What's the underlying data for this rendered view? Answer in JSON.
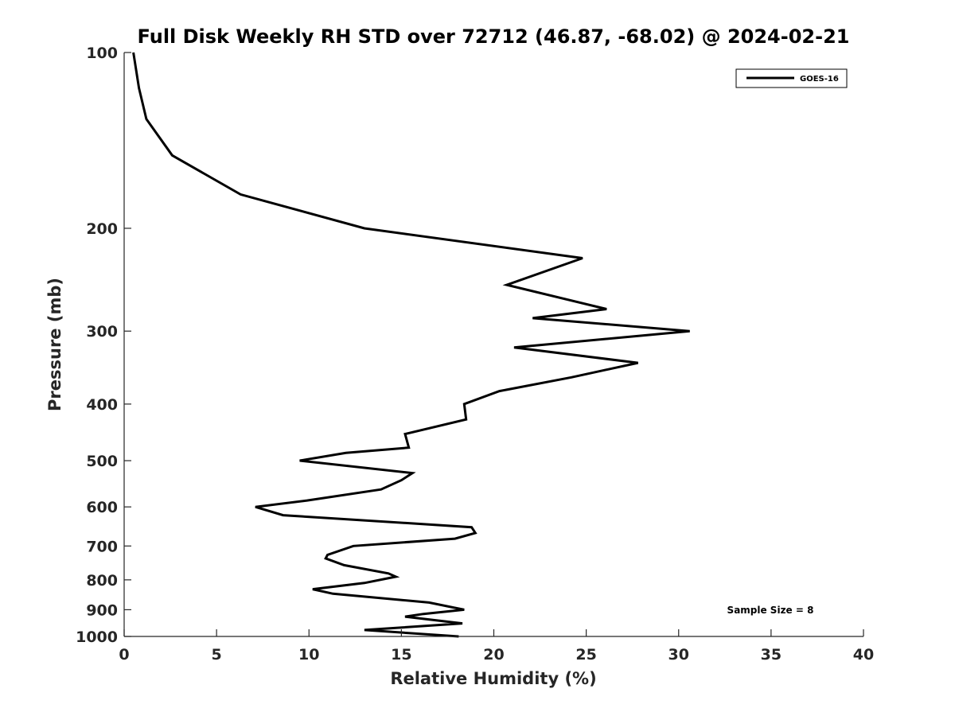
{
  "chart_data": {
    "type": "line",
    "title": "Full Disk Weekly RH STD over 72712 (46.87, -68.02) @ 2024-02-21",
    "xlabel": "Relative Humidity (%)",
    "ylabel": "Pressure (mb)",
    "xlim": [
      0,
      40
    ],
    "ylim": [
      100,
      1000
    ],
    "y_scale": "log",
    "y_reversed": true,
    "xticks": [
      "0",
      "5",
      "10",
      "15",
      "20",
      "25",
      "30",
      "35",
      "40"
    ],
    "yticks": [
      "100",
      "200",
      "300",
      "400",
      "500",
      "600",
      "700",
      "800",
      "900",
      "1000"
    ],
    "grid": false,
    "legend": {
      "entries": [
        "GOES-16"
      ],
      "placement": "top-right"
    },
    "annotation": "Sample Size = 8",
    "series": [
      {
        "name": "GOES-16",
        "color": "#000000",
        "points": [
          [
            0.5,
            100
          ],
          [
            0.8,
            115
          ],
          [
            1.2,
            130
          ],
          [
            2.6,
            150
          ],
          [
            6.3,
            175
          ],
          [
            13.0,
            200
          ],
          [
            24.8,
            225
          ],
          [
            20.7,
            250
          ],
          [
            26.1,
            275
          ],
          [
            22.1,
            285
          ],
          [
            30.6,
            300
          ],
          [
            21.1,
            320
          ],
          [
            27.8,
            340
          ],
          [
            24.2,
            360
          ],
          [
            20.3,
            380
          ],
          [
            18.4,
            400
          ],
          [
            18.5,
            425
          ],
          [
            15.2,
            450
          ],
          [
            15.4,
            475
          ],
          [
            12.0,
            485
          ],
          [
            9.5,
            500
          ],
          [
            15.6,
            525
          ],
          [
            15.0,
            540
          ],
          [
            13.9,
            560
          ],
          [
            9.9,
            585
          ],
          [
            7.1,
            600
          ],
          [
            8.6,
            620
          ],
          [
            18.8,
            650
          ],
          [
            19.0,
            665
          ],
          [
            17.9,
            680
          ],
          [
            12.4,
            700
          ],
          [
            11.0,
            725
          ],
          [
            10.9,
            735
          ],
          [
            11.9,
            755
          ],
          [
            14.3,
            780
          ],
          [
            14.7,
            790
          ],
          [
            13.0,
            810
          ],
          [
            10.2,
            830
          ],
          [
            11.3,
            845
          ],
          [
            16.5,
            875
          ],
          [
            18.4,
            900
          ],
          [
            16.2,
            915
          ],
          [
            15.2,
            925
          ],
          [
            18.3,
            950
          ],
          [
            13.0,
            975
          ],
          [
            18.1,
            1000
          ]
        ]
      }
    ]
  }
}
